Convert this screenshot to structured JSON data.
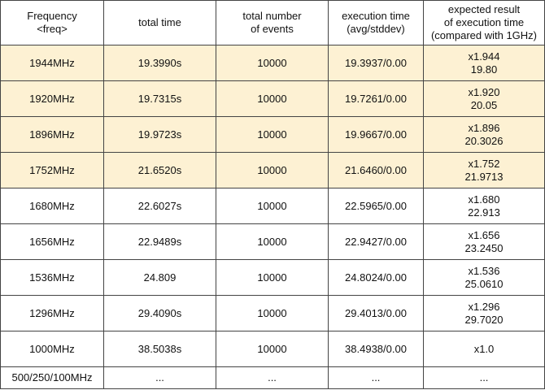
{
  "table": {
    "header": [
      [
        "Frequency",
        "<freq>"
      ],
      [
        "total time"
      ],
      [
        "total number",
        "of events"
      ],
      [
        "execution time",
        "(avg/stddev)"
      ],
      [
        "expected result",
        "of execution time",
        "(compared with 1GHz)"
      ]
    ],
    "rows": [
      {
        "highlighted": true,
        "cells": [
          [
            "1944MHz"
          ],
          [
            "19.3990s"
          ],
          [
            "10000"
          ],
          [
            "19.3937/0.00"
          ],
          [
            "x1.944",
            "19.80"
          ]
        ]
      },
      {
        "highlighted": true,
        "cells": [
          [
            "1920MHz"
          ],
          [
            "19.7315s"
          ],
          [
            "10000"
          ],
          [
            "19.7261/0.00"
          ],
          [
            "x1.920",
            "20.05"
          ]
        ]
      },
      {
        "highlighted": true,
        "cells": [
          [
            "1896MHz"
          ],
          [
            "19.9723s"
          ],
          [
            "10000"
          ],
          [
            "19.9667/0.00"
          ],
          [
            "x1.896",
            "20.3026"
          ]
        ]
      },
      {
        "highlighted": true,
        "cells": [
          [
            "1752MHz"
          ],
          [
            "21.6520s"
          ],
          [
            "10000"
          ],
          [
            "21.6460/0.00"
          ],
          [
            "x1.752",
            "21.9713"
          ]
        ]
      },
      {
        "highlighted": false,
        "cells": [
          [
            "1680MHz"
          ],
          [
            "22.6027s"
          ],
          [
            "10000"
          ],
          [
            "22.5965/0.00"
          ],
          [
            "x1.680",
            "22.913"
          ]
        ]
      },
      {
        "highlighted": false,
        "cells": [
          [
            "1656MHz"
          ],
          [
            "22.9489s"
          ],
          [
            "10000"
          ],
          [
            "22.9427/0.00"
          ],
          [
            "x1.656",
            "23.2450"
          ]
        ]
      },
      {
        "highlighted": false,
        "cells": [
          [
            "1536MHz"
          ],
          [
            "24.809"
          ],
          [
            "10000"
          ],
          [
            "24.8024/0.00"
          ],
          [
            "x1.536",
            "25.0610"
          ]
        ]
      },
      {
        "highlighted": false,
        "cells": [
          [
            "1296MHz"
          ],
          [
            "29.4090s"
          ],
          [
            "10000"
          ],
          [
            "29.4013/0.00"
          ],
          [
            "x1.296",
            "29.7020"
          ]
        ]
      },
      {
        "highlighted": false,
        "cells": [
          [
            "1000MHz"
          ],
          [
            "38.5038s"
          ],
          [
            "10000"
          ],
          [
            "38.4938/0.00"
          ],
          [
            "x1.0"
          ]
        ]
      },
      {
        "highlighted": false,
        "cells": [
          [
            "500/250/100MHz"
          ],
          [
            "..."
          ],
          [
            "..."
          ],
          [
            "..."
          ],
          [
            "..."
          ]
        ]
      }
    ]
  }
}
